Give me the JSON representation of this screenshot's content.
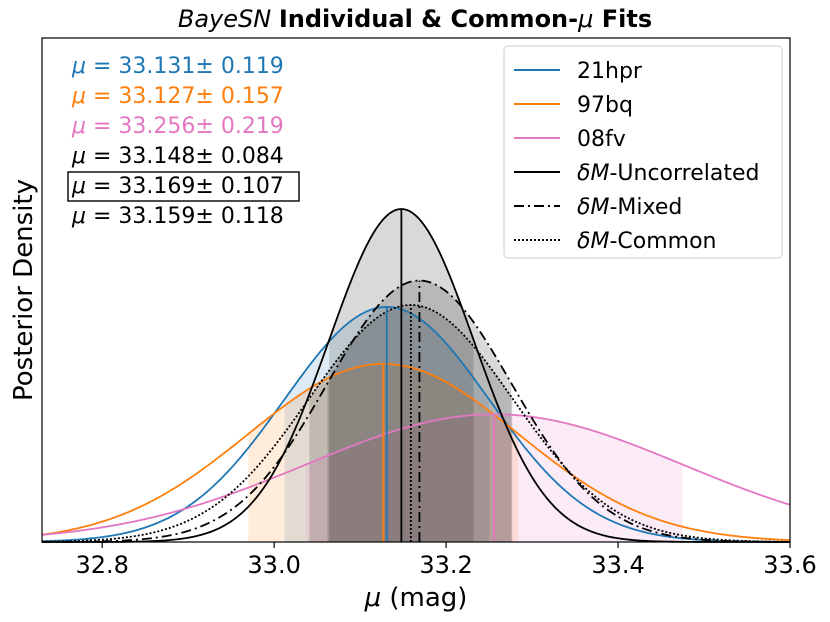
{
  "chart_data": {
    "type": "line",
    "title_italic": "BayeSN",
    "title_rest": "Individual & Common-",
    "title_mu": "μ",
    "title_end": " Fits",
    "xlabel_symbol": "μ",
    "xlabel_unit": " (mag)",
    "ylabel": "Posterior Density",
    "xlim": [
      32.73,
      33.6
    ],
    "ylim": [
      0,
      1.0
    ],
    "xticks": [
      "32.8",
      "33.0",
      "33.2",
      "33.4",
      "33.6"
    ],
    "xtick_values": [
      32.8,
      33.0,
      33.2,
      33.4,
      33.6
    ],
    "series": [
      {
        "name": "21hpr",
        "mean": 33.131,
        "sd": 0.119,
        "pdf_scale": 0.0555,
        "color": "#1f77b4",
        "dash": "",
        "shade": 0.15,
        "mu_label": "μ = 33.131± 0.119",
        "legend_label": "21hpr"
      },
      {
        "name": "97bq",
        "mean": 33.127,
        "sd": 0.157,
        "pdf_scale": 0.0555,
        "color": "#ff7f0e",
        "dash": "",
        "shade": 0.15,
        "mu_label": "μ = 33.127± 0.157",
        "legend_label": "97bq"
      },
      {
        "name": "08fv",
        "mean": 33.256,
        "sd": 0.219,
        "pdf_scale": 0.0555,
        "color": "#e377c2",
        "dash": "",
        "shade": 0.15,
        "mu_label": "μ = 33.256± 0.219",
        "legend_label": "08fv"
      },
      {
        "name": "dM-Uncorrelated",
        "mean": 33.148,
        "sd": 0.084,
        "pdf_scale": 0.0555,
        "color": "#000000",
        "dash": "",
        "shade": 0.15,
        "mu_label": "μ = 33.148± 0.084",
        "legend_prefix": "δM",
        "legend_suffix": "-Uncorrelated",
        "boxed": false
      },
      {
        "name": "dM-Mixed",
        "mean": 33.169,
        "sd": 0.107,
        "pdf_scale": 0.0555,
        "color": "#000000",
        "dash": "10 4 2 4",
        "shade": 0.15,
        "mu_label": "μ = 33.169± 0.107",
        "legend_prefix": "δM",
        "legend_suffix": "-Mixed",
        "boxed": true
      },
      {
        "name": "dM-Common",
        "mean": 33.159,
        "sd": 0.118,
        "pdf_scale": 0.0555,
        "color": "#000000",
        "dash": "2 2",
        "shade": 0.15,
        "mu_label": "μ = 33.159± 0.118",
        "legend_prefix": "δM",
        "legend_suffix": "-Common",
        "boxed": false
      }
    ]
  }
}
